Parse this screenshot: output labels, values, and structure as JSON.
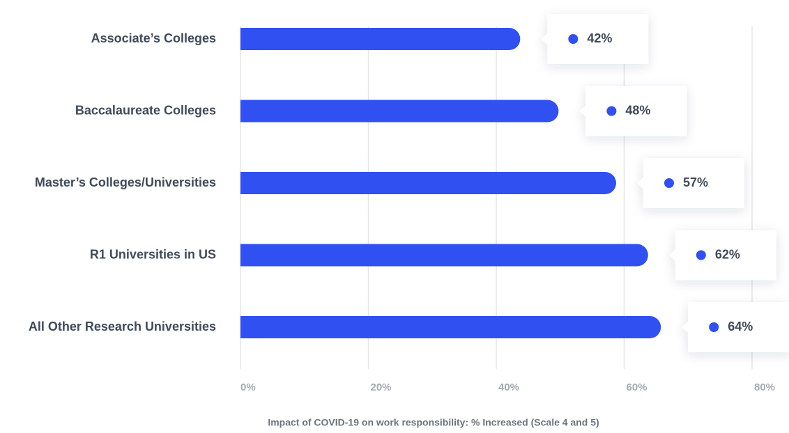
{
  "chart_data": {
    "type": "bar",
    "orientation": "horizontal",
    "x_label": "Impact of COVID-19 on work responsibility: % Increased (Scale 4 and 5)",
    "categories": [
      "Associate’s Colleges",
      "Baccalaureate Colleges",
      "Master’s Colleges/Universities",
      "R1 Universities in US",
      "All Other Research Universities"
    ],
    "values": [
      42,
      48,
      57,
      62,
      64
    ],
    "value_labels": [
      "42%",
      "48%",
      "57%",
      "62%",
      "64%"
    ],
    "color": "#3050f2",
    "xlim": [
      0,
      80
    ],
    "xticks": [
      {
        "value": 0,
        "label": "0%"
      },
      {
        "value": 20,
        "label": "20%"
      },
      {
        "value": 40,
        "label": "40%"
      },
      {
        "value": 60,
        "label": "60%"
      },
      {
        "value": 80,
        "label": "80%"
      }
    ],
    "grid": true
  }
}
